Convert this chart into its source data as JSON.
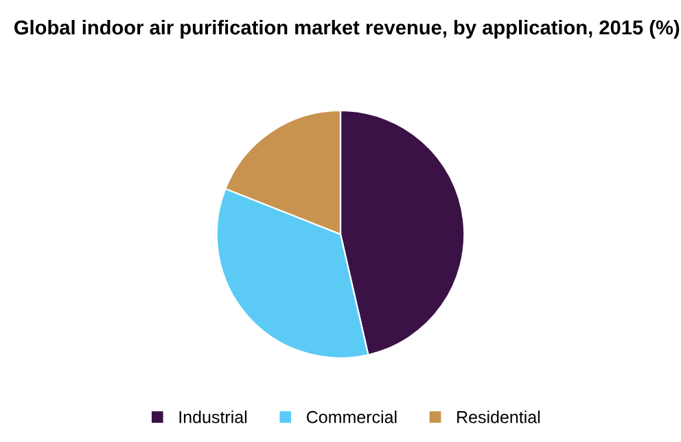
{
  "chart_data": {
    "type": "pie",
    "title": "Global indoor air purification market revenue, by application, 2015 (%)",
    "categories": [
      "Industrial",
      "Commercial",
      "Residential"
    ],
    "values": [
      46.4,
      34.6,
      19.0
    ],
    "colors": [
      "#3a1246",
      "#5bcbf5",
      "#c8934f"
    ],
    "legend": "bottom"
  }
}
